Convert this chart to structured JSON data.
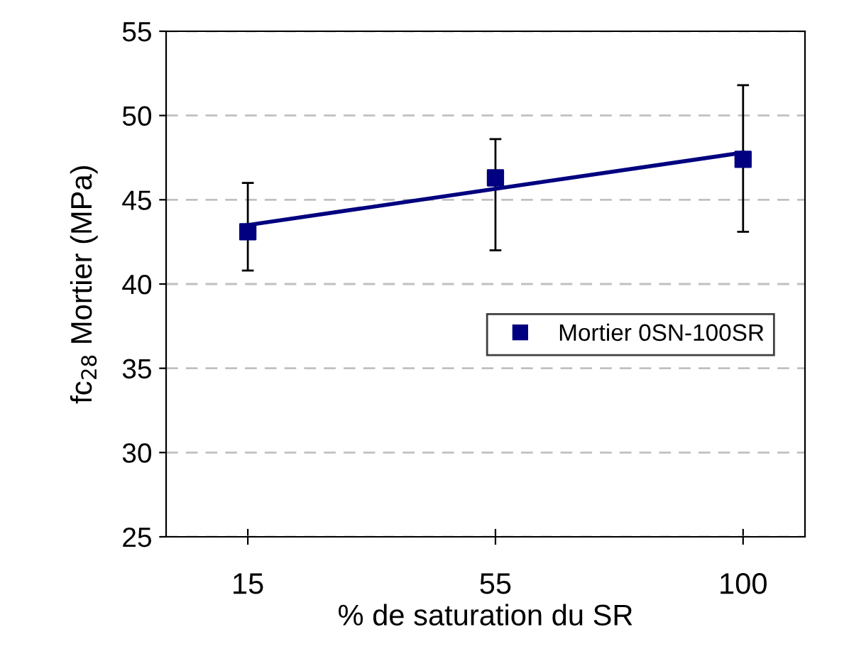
{
  "chart_data": {
    "type": "scatter",
    "xlabel": "% de saturation du SR",
    "ylabel": "fc$_{28}$ Mortier (MPa)",
    "categories": [
      "15",
      "55",
      "100"
    ],
    "series": [
      {
        "name": "Mortier 0SN-100SR",
        "marker": "square",
        "color": "#000080",
        "values": [
          43.1,
          46.3,
          47.4
        ],
        "errors": [
          [
            40.8,
            46.0
          ],
          [
            42.0,
            48.6
          ],
          [
            43.1,
            51.8
          ]
        ]
      },
      {
        "type": "line",
        "color": "#000080",
        "x": [
          "15",
          "100"
        ],
        "values": [
          43.5,
          47.8
        ]
      }
    ],
    "ylim": [
      25,
      55
    ],
    "yticks": [
      25,
      30,
      35,
      40,
      45,
      50,
      55
    ],
    "grid": "y",
    "legend": "center right"
  }
}
